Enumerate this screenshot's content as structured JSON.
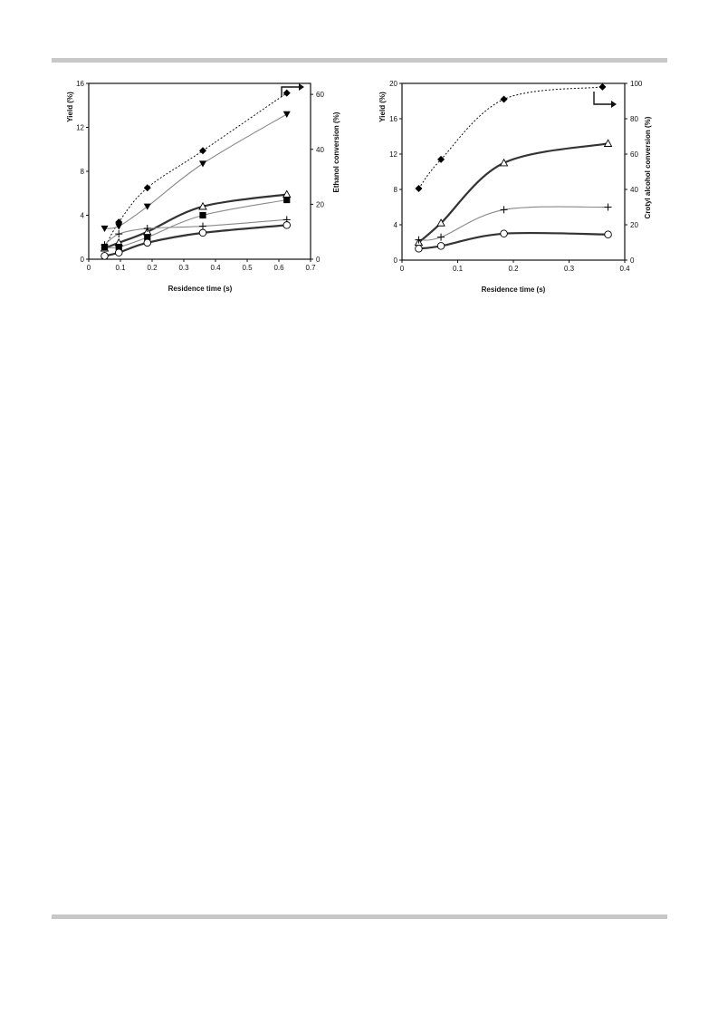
{
  "chart_data": [
    {
      "type": "scatter",
      "xlabel": "Residence time (s)",
      "ylabel": "Yield  (%)",
      "y2label": "Ethanol  conversion  (%)",
      "xlim": [
        0,
        0.7
      ],
      "ylim": [
        0,
        16
      ],
      "y2lim": [
        0,
        64
      ],
      "xticks": [
        "0",
        "0.1",
        "0.2",
        "0.3",
        "0.4",
        "0.5",
        "0.6",
        "0.7"
      ],
      "yticks": [
        "0",
        "4",
        "8",
        "12",
        "16"
      ],
      "y2ticks": [
        "0",
        "20",
        "40",
        "60"
      ],
      "series": [
        {
          "marker": "diamond",
          "axis": "right",
          "fit": "dotted",
          "x": [
            0.05,
            0.095,
            0.185,
            0.36,
            0.625
          ],
          "y": [
            4.0,
            13.5,
            26.0,
            39.5,
            60.5
          ]
        },
        {
          "marker": "triangle-down",
          "axis": "left",
          "fit": "thin",
          "x": [
            0.05,
            0.095,
            0.185,
            0.36,
            0.625
          ],
          "y": [
            2.8,
            3.0,
            4.8,
            8.7,
            13.2
          ]
        },
        {
          "marker": "triangle-up-open",
          "axis": "left",
          "fit": "thick",
          "x": [
            0.05,
            0.095,
            0.185,
            0.36,
            0.625
          ],
          "y": [
            1.0,
            1.5,
            2.5,
            4.8,
            5.9
          ]
        },
        {
          "marker": "square",
          "axis": "left",
          "fit": "thin",
          "x": [
            0.05,
            0.095,
            0.185,
            0.36,
            0.625
          ],
          "y": [
            1.1,
            1.1,
            2.0,
            4.0,
            5.4
          ]
        },
        {
          "marker": "plus",
          "axis": "left",
          "fit": "thin",
          "x": [
            0.05,
            0.095,
            0.185,
            0.36,
            0.625
          ],
          "y": [
            1.3,
            2.3,
            2.8,
            3.0,
            3.6
          ]
        },
        {
          "marker": "circle-open",
          "axis": "left",
          "fit": "thick",
          "x": [
            0.05,
            0.095,
            0.185,
            0.36,
            0.625
          ],
          "y": [
            0.3,
            0.6,
            1.5,
            2.4,
            3.1
          ]
        }
      ]
    },
    {
      "type": "scatter",
      "xlabel": "Residence time (s)",
      "ylabel": "Yield (%)",
      "y2label": "Crotyl alcohol  conversion  (%)",
      "xlim": [
        0,
        0.4
      ],
      "ylim": [
        0,
        20
      ],
      "y2lim": [
        0,
        100
      ],
      "xticks": [
        "0",
        "0.1",
        "0.2",
        "0.3",
        "0.4"
      ],
      "yticks": [
        "0",
        "4",
        "8",
        "12",
        "16",
        "20"
      ],
      "y2ticks": [
        "0",
        "20",
        "40",
        "60",
        "80",
        "100"
      ],
      "series": [
        {
          "marker": "diamond",
          "axis": "right",
          "fit": "dotted",
          "x": [
            0.03,
            0.07,
            0.183,
            0.36
          ],
          "y": [
            40.5,
            57.0,
            91.0,
            98.0
          ]
        },
        {
          "marker": "triangle-up-open",
          "axis": "left",
          "fit": "thick",
          "x": [
            0.03,
            0.07,
            0.183,
            0.37
          ],
          "y": [
            2.0,
            4.2,
            11.0,
            13.2
          ]
        },
        {
          "marker": "plus",
          "axis": "left",
          "fit": "thin",
          "x": [
            0.03,
            0.07,
            0.183,
            0.37
          ],
          "y": [
            2.3,
            2.6,
            5.7,
            6.0
          ]
        },
        {
          "marker": "circle-open",
          "axis": "left",
          "fit": "thick",
          "x": [
            0.03,
            0.07,
            0.183,
            0.37
          ],
          "y": [
            1.3,
            1.6,
            3.0,
            2.9
          ]
        }
      ]
    }
  ]
}
